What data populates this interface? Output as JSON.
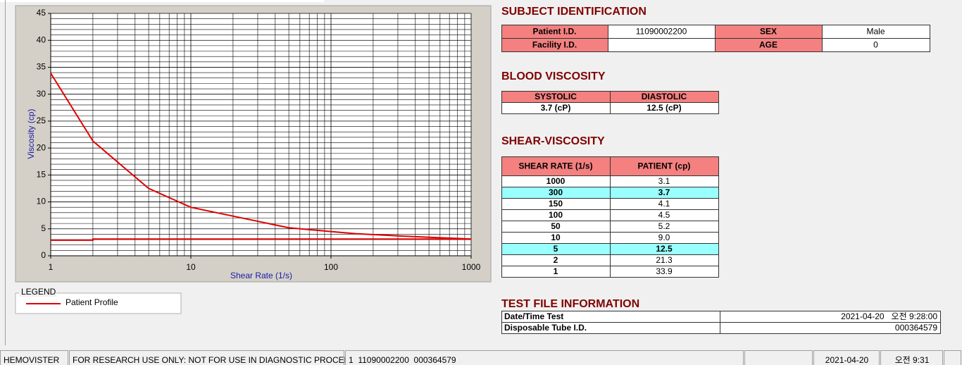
{
  "chart_data": {
    "type": "line",
    "x_label": "Shear Rate (1/s)",
    "y_label": "Viscosity (cp)",
    "xscale": "log",
    "xlim": [
      1,
      1000
    ],
    "ylim": [
      0,
      45
    ],
    "xticks": [
      1,
      10,
      100,
      1000
    ],
    "yticks": [
      0,
      5,
      10,
      15,
      20,
      25,
      30,
      35,
      40,
      45
    ],
    "grid": true,
    "legend_title": "LEGEND",
    "series": [
      {
        "name": "Patient Profile",
        "color": "#e00000",
        "x": [
          1,
          2,
          5,
          10,
          50,
          100,
          150,
          300,
          1000
        ],
        "values": [
          33.9,
          21.3,
          12.5,
          9.0,
          5.2,
          4.5,
          4.1,
          3.7,
          3.1
        ]
      },
      {
        "color": "#e00000",
        "x": [
          1,
          2,
          2,
          1000
        ],
        "values": [
          2.9,
          2.9,
          3.1,
          3.1
        ]
      }
    ]
  },
  "subject_identification": {
    "title": "SUBJECT IDENTIFICATION",
    "rows": [
      [
        "Patient I.D.",
        "11090002200",
        "SEX",
        "Male"
      ],
      [
        "Facility I.D.",
        null,
        "AGE",
        "0"
      ]
    ]
  },
  "blood_viscosity": {
    "title": "BLOOD VISCOSITY",
    "header": [
      "SYSTOLIC",
      "DIASTOLIC"
    ],
    "row": [
      "3.7 (cP)",
      "12.5 (cP)"
    ]
  },
  "shear_viscosity": {
    "title": "SHEAR-VISCOSITY",
    "header": [
      "SHEAR RATE (1/s)",
      "PATIENT (cp)"
    ],
    "rows": [
      [
        "1000",
        "3.1"
      ],
      [
        "300",
        "3.7"
      ],
      [
        "150",
        "4.1"
      ],
      [
        "100",
        "4.5"
      ],
      [
        "50",
        "5.2"
      ],
      [
        "10",
        "9.0"
      ],
      [
        "5",
        "12.5"
      ],
      [
        "2",
        "21.3"
      ],
      [
        "1",
        "33.9"
      ]
    ],
    "highlighted_rows": [
      1,
      6
    ]
  },
  "test_file": {
    "title": "TEST FILE INFORMATION",
    "rows": [
      [
        "Date/Time Test",
        "2021-04-20   오전 9:28:00"
      ],
      [
        "Disposable Tube I.D.",
        "000364579"
      ]
    ]
  },
  "status_bar": [
    "HEMOVISTER",
    "FOR RESEARCH USE ONLY: NOT FOR USE IN DIAGNOSTIC PROCEDURES",
    "1  11090002200  000364579",
    "2021-04-20",
    "오전 9:31"
  ]
}
